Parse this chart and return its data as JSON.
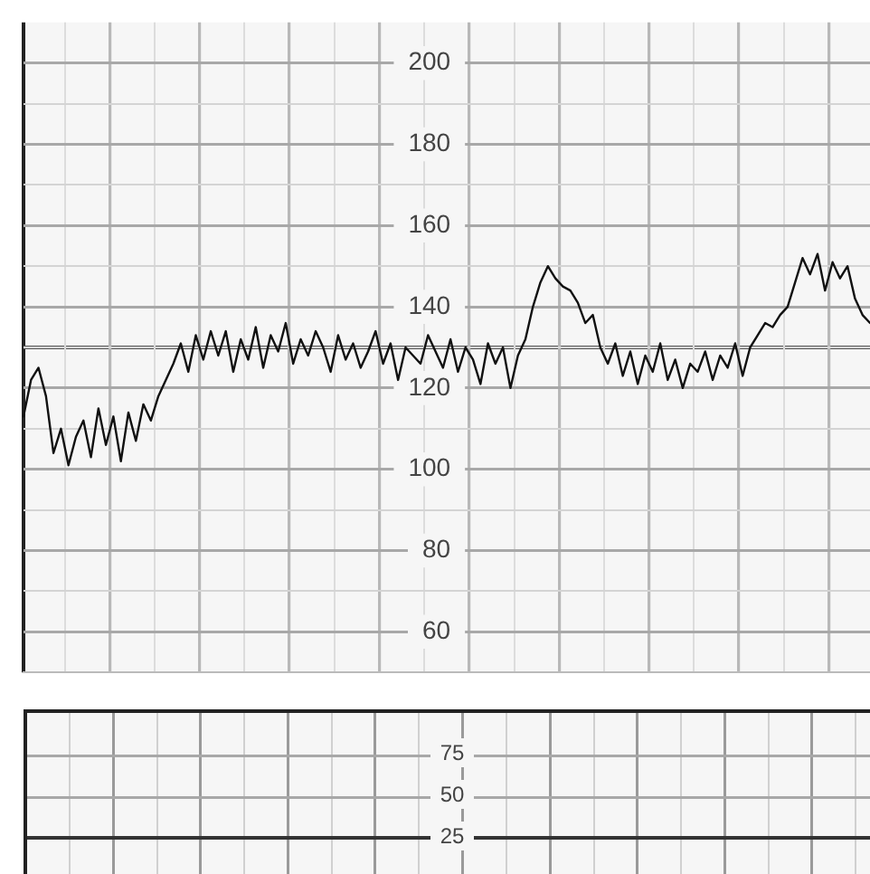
{
  "chart_data": [
    {
      "type": "line",
      "categories": [
        null,
        null,
        null,
        null,
        null,
        null,
        null,
        null,
        null,
        null,
        null,
        null,
        null,
        null,
        null,
        null,
        null,
        null,
        null,
        null,
        null,
        null,
        null,
        null,
        null,
        null,
        null,
        null,
        null,
        null,
        null,
        null,
        null,
        null,
        null,
        null,
        null,
        null,
        null,
        null,
        null,
        null,
        null,
        null,
        null,
        null,
        null,
        null,
        null,
        null,
        null,
        null,
        null,
        null,
        null,
        null,
        null,
        null,
        null,
        null,
        null,
        null,
        null,
        null,
        null,
        null,
        null,
        null,
        null,
        null,
        null,
        null,
        null,
        null,
        null,
        null,
        null,
        null,
        null,
        null,
        null,
        null,
        null,
        null,
        null,
        null,
        null,
        null,
        null,
        null,
        null,
        null,
        null,
        null,
        null,
        null,
        null,
        null,
        null,
        null,
        null,
        null,
        null,
        null,
        null,
        null,
        null,
        null,
        null,
        null,
        null,
        null,
        null,
        null
      ],
      "values": [
        113,
        122,
        125,
        118,
        104,
        110,
        101,
        108,
        112,
        103,
        115,
        106,
        113,
        102,
        114,
        107,
        116,
        112,
        118,
        122,
        126,
        131,
        124,
        133,
        127,
        134,
        128,
        134,
        124,
        132,
        127,
        135,
        125,
        133,
        129,
        136,
        126,
        132,
        128,
        134,
        130,
        124,
        133,
        127,
        131,
        125,
        129,
        134,
        126,
        131,
        122,
        130,
        128,
        126,
        133,
        129,
        125,
        132,
        124,
        130,
        127,
        121,
        131,
        126,
        130,
        120,
        128,
        132,
        140,
        146,
        150,
        147,
        145,
        144,
        141,
        136,
        138,
        130,
        126,
        131,
        123,
        129,
        121,
        128,
        124,
        131,
        122,
        127,
        120,
        126,
        124,
        129,
        122,
        128,
        125,
        131,
        123,
        130,
        133,
        136,
        135,
        138,
        140,
        146,
        152,
        148,
        153,
        144,
        151,
        147,
        150,
        142,
        138,
        136
      ],
      "color": "#111111",
      "line_style": "solid",
      "marker": "none",
      "ylim": [
        50,
        210
      ],
      "yticks": [
        {
          "value": 50,
          "label": null
        },
        60,
        {
          "value": 70,
          "label": null
        },
        80,
        {
          "value": 90,
          "label": null
        },
        100,
        {
          "value": 110,
          "label": null
        },
        120,
        {
          "value": 130,
          "label": null
        },
        140,
        {
          "value": 150,
          "label": null
        },
        160,
        {
          "value": 170,
          "label": null
        },
        180,
        {
          "value": 190,
          "label": null
        },
        200
      ],
      "ref_lines": [
        {
          "axis": "y",
          "value": 130,
          "color": "#555555"
        }
      ],
      "annotations": [
        "75",
        "50",
        "25"
      ],
      "grid": true,
      "legend": false,
      "tick_labels": "y"
    }
  ]
}
